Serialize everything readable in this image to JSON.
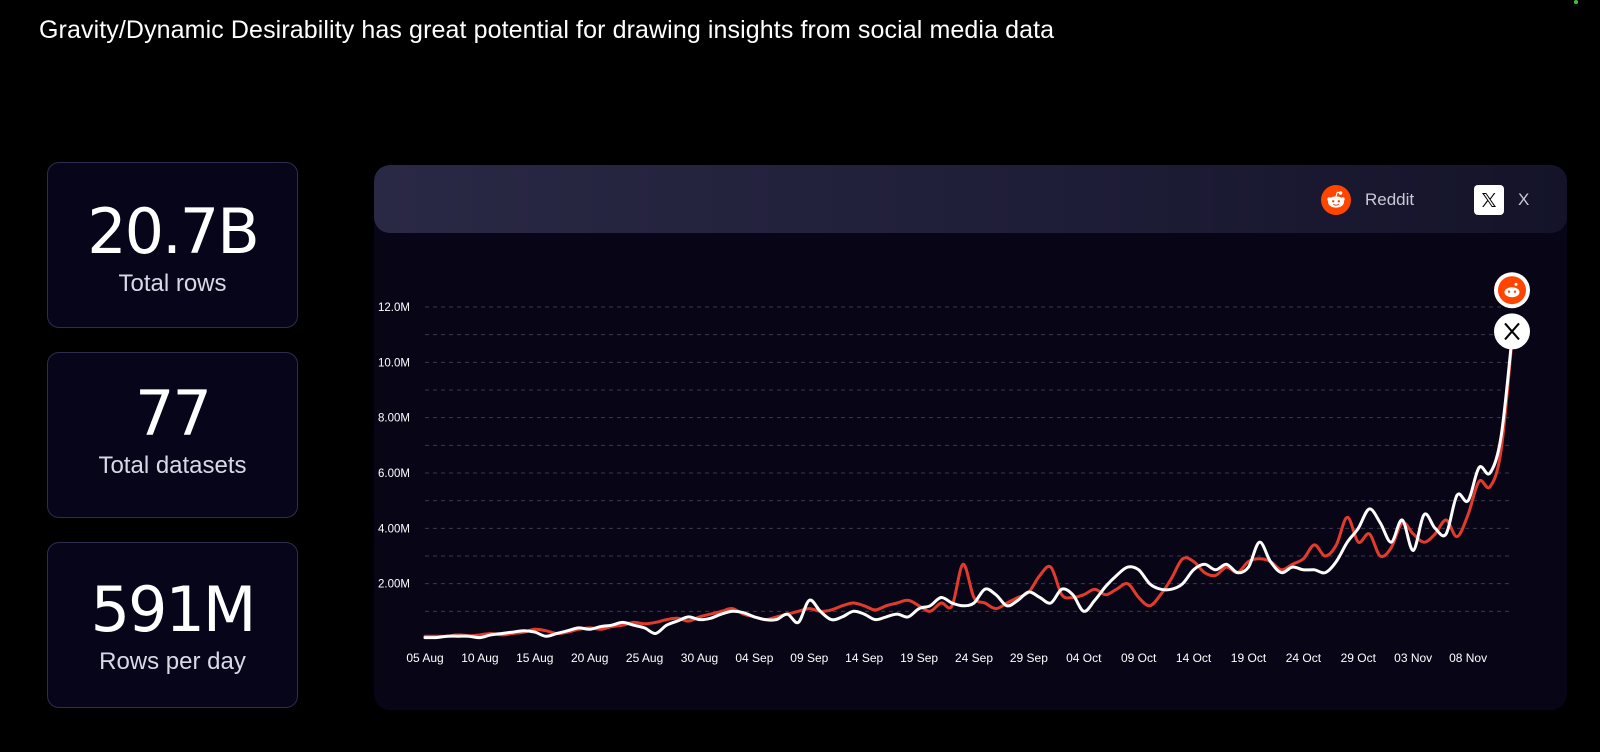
{
  "headline": "Gravity/Dynamic Desirability has great potential for drawing insights from social media data",
  "stats": [
    {
      "value": "20.7B",
      "label": "Total rows"
    },
    {
      "value": "77",
      "label": "Total datasets"
    },
    {
      "value": "591M",
      "label": "Rows per day"
    }
  ],
  "legend": {
    "reddit_label": "Reddit",
    "x_label": "X",
    "reddit_icon": "reddit-icon",
    "x_icon": "x-logo-icon"
  },
  "colors": {
    "reddit": "#e23b2e",
    "x": "#ffffff",
    "reddit_brand": "#ff4500"
  },
  "chart_data": {
    "type": "line",
    "title": "",
    "xlabel": "",
    "ylabel": "",
    "ylim": [
      0,
      12.6
    ],
    "y_unit": "M",
    "y_ticks": [
      2,
      4,
      6,
      8,
      10,
      12
    ],
    "y_tick_labels": [
      "2.00M",
      "4.00M",
      "6.00M",
      "8.00M",
      "10.0M",
      "12.0M"
    ],
    "grid": true,
    "legend_position": "top-right",
    "x_ticks": [
      "05 Aug",
      "10 Aug",
      "15 Aug",
      "20 Aug",
      "25 Aug",
      "30 Aug",
      "04 Sep",
      "09 Sep",
      "14 Sep",
      "19 Sep",
      "24 Sep",
      "29 Sep",
      "04 Oct",
      "09 Oct",
      "14 Oct",
      "19 Oct",
      "24 Oct",
      "29 Oct",
      "03 Nov",
      "08 Nov"
    ],
    "x_step_days": 5,
    "num_days": 100,
    "series": [
      {
        "name": "Reddit",
        "color": "#e23b2e",
        "values": [
          0.1,
          0.1,
          0.1,
          0.15,
          0.12,
          0.15,
          0.2,
          0.15,
          0.2,
          0.25,
          0.35,
          0.3,
          0.2,
          0.25,
          0.35,
          0.4,
          0.35,
          0.45,
          0.5,
          0.6,
          0.55,
          0.6,
          0.7,
          0.75,
          0.65,
          0.8,
          0.9,
          1.0,
          1.1,
          0.9,
          0.8,
          0.7,
          0.8,
          0.9,
          1.0,
          1.1,
          1.0,
          1.05,
          1.2,
          1.3,
          1.2,
          1.05,
          1.2,
          1.3,
          1.4,
          1.2,
          1.0,
          1.3,
          1.2,
          2.7,
          1.5,
          1.3,
          1.1,
          1.3,
          1.5,
          1.7,
          2.3,
          2.6,
          1.6,
          1.5,
          1.6,
          1.8,
          1.6,
          1.8,
          2.0,
          1.5,
          1.2,
          1.6,
          2.2,
          2.9,
          2.8,
          2.4,
          2.3,
          2.6,
          2.4,
          2.8,
          2.9,
          2.8,
          2.5,
          2.7,
          2.9,
          3.4,
          3.0,
          3.4,
          4.4,
          3.5,
          3.8,
          3.0,
          3.3,
          4.2,
          3.8,
          3.5,
          3.8,
          4.3,
          3.7,
          4.5,
          5.7,
          5.5,
          6.8,
          10.8
        ],
        "note": "approximate daily values read from the chart"
      },
      {
        "name": "X",
        "color": "#ffffff",
        "values": [
          0.05,
          0.05,
          0.1,
          0.1,
          0.1,
          0.05,
          0.15,
          0.2,
          0.25,
          0.3,
          0.25,
          0.1,
          0.2,
          0.3,
          0.4,
          0.35,
          0.45,
          0.5,
          0.6,
          0.5,
          0.4,
          0.2,
          0.5,
          0.65,
          0.8,
          0.7,
          0.75,
          0.9,
          1.0,
          0.95,
          0.8,
          0.7,
          0.7,
          0.9,
          0.6,
          1.4,
          1.0,
          0.7,
          0.8,
          1.0,
          0.9,
          0.7,
          0.8,
          0.9,
          0.8,
          1.1,
          1.2,
          1.5,
          1.3,
          1.2,
          1.3,
          1.8,
          1.6,
          1.2,
          1.4,
          1.7,
          1.5,
          1.3,
          1.8,
          1.6,
          1.0,
          1.4,
          1.9,
          2.3,
          2.6,
          2.5,
          2.0,
          1.8,
          1.8,
          2.0,
          2.5,
          2.7,
          2.5,
          2.7,
          2.4,
          2.6,
          3.5,
          2.8,
          2.4,
          2.6,
          2.5,
          2.5,
          2.4,
          2.8,
          3.5,
          4.0,
          4.7,
          4.2,
          3.5,
          4.3,
          3.2,
          4.5,
          4.0,
          3.8,
          5.2,
          5.0,
          6.2,
          6.0,
          7.3,
          10.9
        ],
        "note": "approximate daily values read from the chart"
      }
    ]
  }
}
